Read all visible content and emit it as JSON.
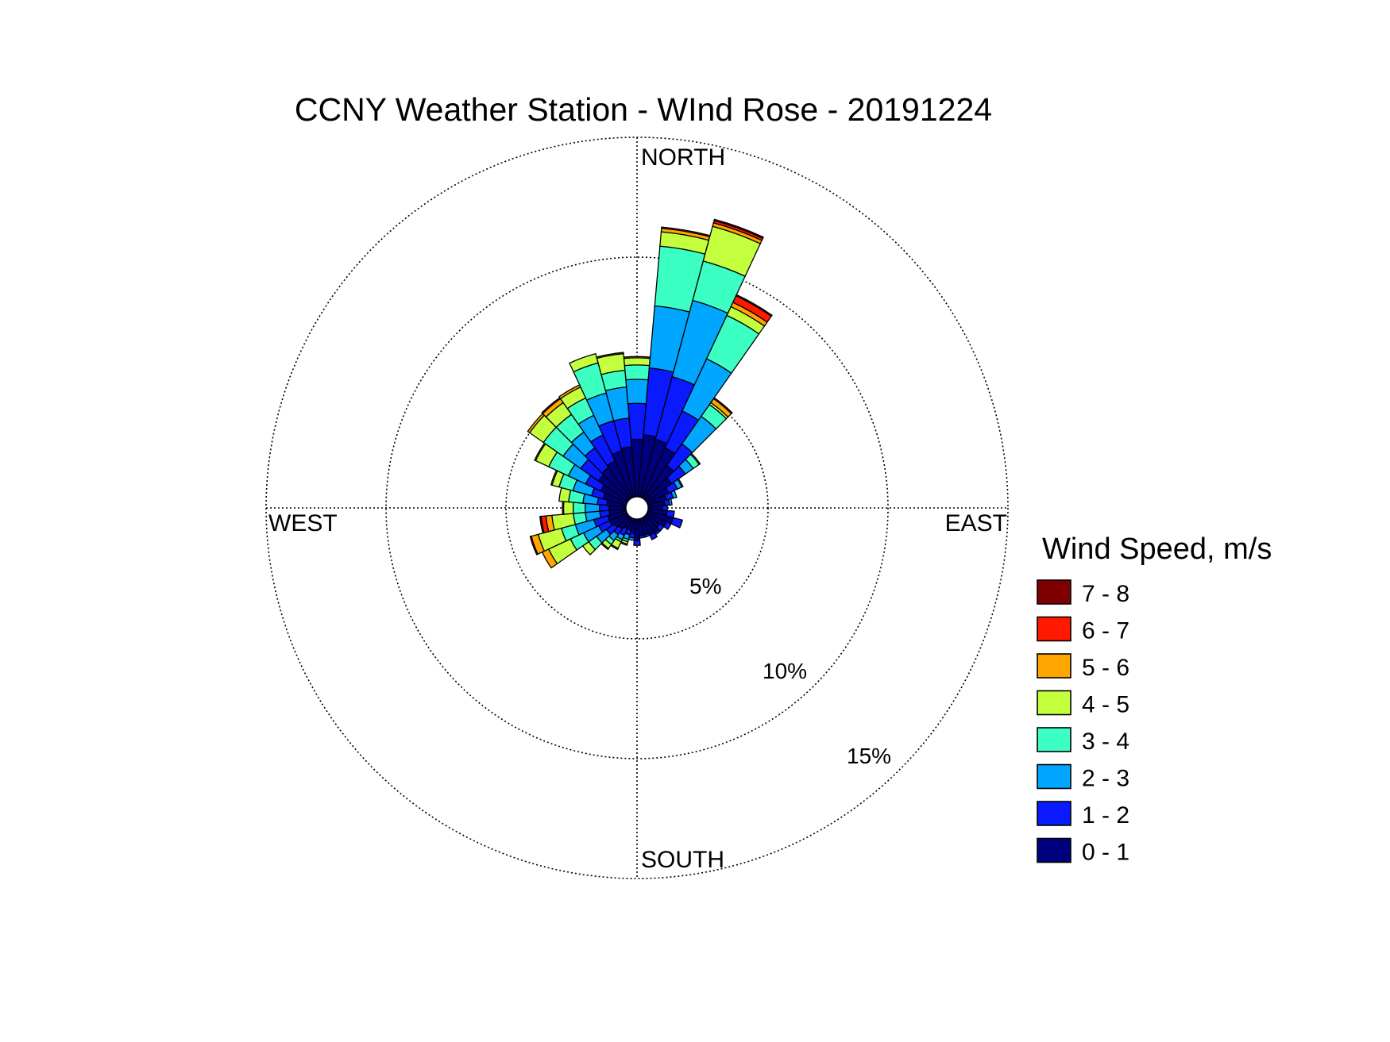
{
  "chart_data": {
    "type": "wind-rose",
    "title": "CCNY Weather Station - WInd Rose - 20191224",
    "direction_labels": {
      "north": "NORTH",
      "east": "EAST",
      "south": "SOUTH",
      "west": "WEST"
    },
    "radial_ticks": [
      {
        "value": 5,
        "label": "5%"
      },
      {
        "value": 10,
        "label": "10%"
      },
      {
        "value": 15,
        "label": "15%"
      }
    ],
    "rmax": 15,
    "legend": {
      "title": "Wind Speed, m/s",
      "placement": "right"
    },
    "speed_bins": [
      {
        "label": "0 - 1",
        "color": "#00007f"
      },
      {
        "label": "1 - 2",
        "color": "#0a19ff"
      },
      {
        "label": "2 - 3",
        "color": "#00a6ff"
      },
      {
        "label": "3 - 4",
        "color": "#3cffc3"
      },
      {
        "label": "4 - 5",
        "color": "#c3ff3c"
      },
      {
        "label": "5 - 6",
        "color": "#ffa600"
      },
      {
        "label": "6 - 7",
        "color": "#ff1900"
      },
      {
        "label": "7 - 8",
        "color": "#7f0000"
      }
    ],
    "sector_width_deg": 10,
    "sectors": [
      {
        "direction": 0,
        "values": [
          2.4,
          1.5,
          1.0,
          0.6,
          0.3,
          0.05,
          0.0,
          0.0
        ]
      },
      {
        "direction": 10,
        "values": [
          2.6,
          2.8,
          2.6,
          2.5,
          0.6,
          0.15,
          0.05,
          0.0
        ]
      },
      {
        "direction": 20,
        "values": [
          2.5,
          2.7,
          3.3,
          1.7,
          1.5,
          0.15,
          0.1,
          0.05
        ]
      },
      {
        "direction": 30,
        "values": [
          2.3,
          1.7,
          2.4,
          2.0,
          0.4,
          0.2,
          0.3,
          0.05
        ]
      },
      {
        "direction": 40,
        "values": [
          1.7,
          1.1,
          1.4,
          0.6,
          0.1,
          0.2,
          0.05,
          0.0
        ]
      },
      {
        "direction": 50,
        "values": [
          1.3,
          0.7,
          0.4,
          0.3,
          0.05,
          0.0,
          0.0,
          0.0
        ]
      },
      {
        "direction": 60,
        "values": [
          1.0,
          0.4,
          0.2,
          0.05,
          0.0,
          0.0,
          0.0,
          0.0
        ]
      },
      {
        "direction": 70,
        "values": [
          0.8,
          0.3,
          0.15,
          0.0,
          0.0,
          0.0,
          0.0,
          0.0
        ]
      },
      {
        "direction": 80,
        "values": [
          0.7,
          0.2,
          0.1,
          0.0,
          0.0,
          0.0,
          0.0,
          0.0
        ]
      },
      {
        "direction": 90,
        "values": [
          0.6,
          0.2,
          0.0,
          0.0,
          0.0,
          0.0,
          0.0,
          0.0
        ]
      },
      {
        "direction": 100,
        "values": [
          0.8,
          0.3,
          0.0,
          0.0,
          0.0,
          0.0,
          0.0,
          0.0
        ]
      },
      {
        "direction": 110,
        "values": [
          1.1,
          0.4,
          0.0,
          0.0,
          0.0,
          0.0,
          0.0,
          0.0
        ]
      },
      {
        "direction": 120,
        "values": [
          0.9,
          0.2,
          0.0,
          0.0,
          0.0,
          0.0,
          0.0,
          0.0
        ]
      },
      {
        "direction": 130,
        "values": [
          0.7,
          0.2,
          0.0,
          0.0,
          0.0,
          0.0,
          0.0,
          0.0
        ]
      },
      {
        "direction": 140,
        "values": [
          0.8,
          0.1,
          0.0,
          0.0,
          0.0,
          0.0,
          0.0,
          0.0
        ]
      },
      {
        "direction": 150,
        "values": [
          0.8,
          0.2,
          0.0,
          0.0,
          0.0,
          0.0,
          0.0,
          0.0
        ]
      },
      {
        "direction": 160,
        "values": [
          0.7,
          0.1,
          0.0,
          0.0,
          0.0,
          0.0,
          0.0,
          0.0
        ]
      },
      {
        "direction": 170,
        "values": [
          0.7,
          0.1,
          0.0,
          0.0,
          0.0,
          0.0,
          0.0,
          0.0
        ]
      },
      {
        "direction": 180,
        "values": [
          0.9,
          0.2,
          0.0,
          0.0,
          0.0,
          0.0,
          0.0,
          0.0
        ]
      },
      {
        "direction": 190,
        "values": [
          0.6,
          0.2,
          0.1,
          0.0,
          0.0,
          0.0,
          0.0,
          0.0
        ]
      },
      {
        "direction": 200,
        "values": [
          0.5,
          0.2,
          0.2,
          0.1,
          0.1,
          0.05,
          0.0,
          0.0
        ]
      },
      {
        "direction": 210,
        "values": [
          0.5,
          0.3,
          0.2,
          0.1,
          0.3,
          0.05,
          0.0,
          0.0
        ]
      },
      {
        "direction": 220,
        "values": [
          0.6,
          0.3,
          0.3,
          0.2,
          0.2,
          0.05,
          0.0,
          0.0
        ]
      },
      {
        "direction": 230,
        "values": [
          0.7,
          0.4,
          0.5,
          0.4,
          0.3,
          0.0,
          0.0,
          0.0
        ]
      },
      {
        "direction": 240,
        "values": [
          0.8,
          0.5,
          0.7,
          0.6,
          1.0,
          0.3,
          0.0,
          0.0
        ]
      },
      {
        "direction": 250,
        "values": [
          0.8,
          0.6,
          0.8,
          0.6,
          1.0,
          0.3,
          0.05,
          0.0
        ]
      },
      {
        "direction": 260,
        "values": [
          0.7,
          0.4,
          0.6,
          0.5,
          0.9,
          0.25,
          0.2,
          0.05
        ]
      },
      {
        "direction": 270,
        "values": [
          0.7,
          0.4,
          0.6,
          0.5,
          0.4,
          0.05,
          0.0,
          0.0
        ]
      },
      {
        "direction": 280,
        "values": [
          0.8,
          0.4,
          0.6,
          0.6,
          0.4,
          0.0,
          0.0,
          0.0
        ]
      },
      {
        "direction": 290,
        "values": [
          1.0,
          0.5,
          0.8,
          0.6,
          0.3,
          0.05,
          0.0,
          0.0
        ]
      },
      {
        "direction": 300,
        "values": [
          1.2,
          0.7,
          0.8,
          0.9,
          0.6,
          0.05,
          0.0,
          0.0
        ]
      },
      {
        "direction": 310,
        "values": [
          1.5,
          0.9,
          0.9,
          1.0,
          0.7,
          0.1,
          0.0,
          0.0
        ]
      },
      {
        "direction": 320,
        "values": [
          1.6,
          1.0,
          0.8,
          0.9,
          0.6,
          0.2,
          0.05,
          0.0
        ]
      },
      {
        "direction": 330,
        "values": [
          1.7,
          1.2,
          0.9,
          0.8,
          0.5,
          0.1,
          0.0,
          0.0
        ]
      },
      {
        "direction": 340,
        "values": [
          2.0,
          1.3,
          1.2,
          1.3,
          0.4,
          0.0,
          0.0,
          0.0
        ]
      },
      {
        "direction": 350,
        "values": [
          2.1,
          1.2,
          1.3,
          0.7,
          0.7,
          0.05,
          0.0,
          0.0
        ]
      }
    ]
  }
}
